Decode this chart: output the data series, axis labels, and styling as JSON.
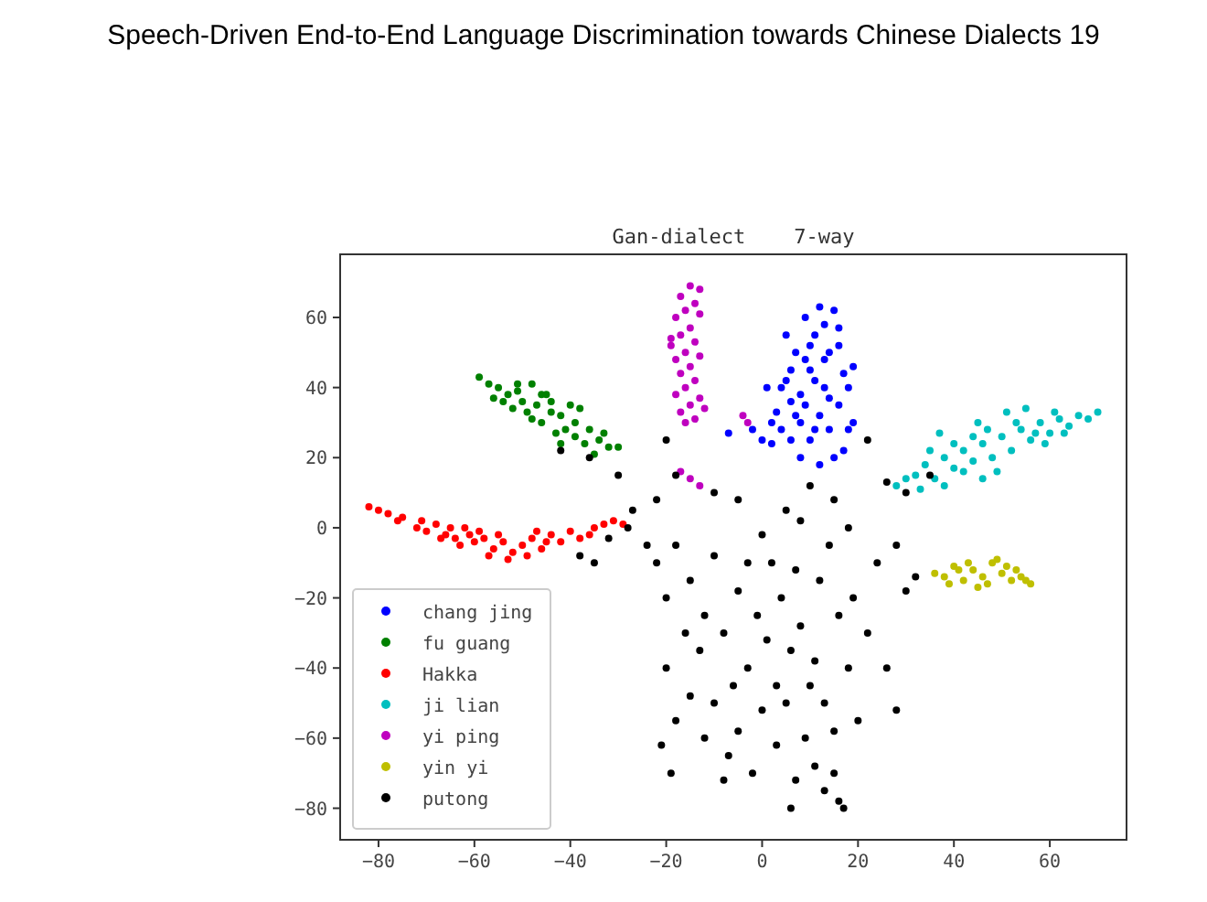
{
  "chart_data": {
    "type": "scatter",
    "title": "Gan-dialect    7-way",
    "annotations": [
      "Speech-Driven End-to-End Language Discrimination towards Chinese Dialects 19"
    ],
    "xlim": [
      -88,
      76
    ],
    "ylim": [
      -89,
      78
    ],
    "xticks": [
      -80,
      -60,
      -40,
      -20,
      0,
      20,
      40,
      60
    ],
    "yticks": [
      -80,
      -60,
      -40,
      -20,
      0,
      20,
      40,
      60
    ],
    "grid": false,
    "legend": "bottom left",
    "marker": "circle",
    "series": [
      {
        "name": "chang jing",
        "color": "#0000ff",
        "x": [
          12,
          15,
          9,
          11,
          16,
          14,
          19,
          18,
          10,
          6,
          4,
          8,
          13,
          16,
          12,
          8,
          4,
          6,
          10,
          14,
          18,
          2,
          15,
          12,
          6,
          3,
          1,
          0,
          17,
          13,
          10,
          7,
          5,
          13,
          16,
          11,
          9,
          14,
          7,
          17,
          -7,
          -2,
          8,
          11,
          19,
          2,
          5,
          9
        ],
        "values": [
          63,
          62,
          60,
          55,
          57,
          50,
          46,
          40,
          45,
          45,
          40,
          38,
          40,
          35,
          32,
          30,
          28,
          25,
          25,
          28,
          28,
          24,
          20,
          18,
          36,
          33,
          40,
          25,
          44,
          48,
          52,
          50,
          55,
          58,
          52,
          42,
          35,
          37,
          32,
          22,
          27,
          28,
          20,
          28,
          30,
          30,
          42,
          48
        ]
      },
      {
        "name": "fu guang",
        "color": "#008000",
        "x": [
          -59,
          -57,
          -55,
          -53,
          -56,
          -51,
          -48,
          -50,
          -52,
          -47,
          -45,
          -44,
          -46,
          -42,
          -40,
          -38,
          -41,
          -39,
          -36,
          -37,
          -34,
          -32,
          -35,
          -43,
          -48,
          -54,
          -49,
          -44,
          -39,
          -33,
          -30,
          -42,
          -46,
          -51
        ],
        "values": [
          43,
          41,
          40,
          38,
          37,
          39,
          41,
          36,
          34,
          35,
          38,
          33,
          30,
          32,
          35,
          34,
          28,
          26,
          28,
          24,
          25,
          23,
          21,
          27,
          31,
          36,
          33,
          36,
          30,
          27,
          23,
          24,
          38,
          41
        ]
      },
      {
        "name": "Hakka",
        "color": "#ff0000",
        "x": [
          -82,
          -80,
          -78,
          -76,
          -75,
          -72,
          -70,
          -68,
          -66,
          -64,
          -62,
          -60,
          -58,
          -56,
          -54,
          -52,
          -50,
          -48,
          -46,
          -44,
          -42,
          -40,
          -38,
          -35,
          -33,
          -31,
          -29,
          -36,
          -63,
          -57,
          -53,
          -61,
          -67,
          -71,
          -59,
          -45,
          -49,
          -55,
          -65,
          -47
        ],
        "values": [
          6,
          5,
          4,
          2,
          3,
          0,
          -1,
          1,
          -2,
          -3,
          0,
          -4,
          -3,
          -6,
          -4,
          -7,
          -5,
          -3,
          -6,
          -2,
          -4,
          -1,
          -3,
          0,
          1,
          2,
          1,
          -2,
          -5,
          -8,
          -9,
          -2,
          -3,
          2,
          -1,
          -4,
          -8,
          -2,
          0,
          -1
        ]
      },
      {
        "name": "ji lian",
        "color": "#00bfbf",
        "x": [
          28,
          30,
          32,
          34,
          36,
          38,
          40,
          42,
          44,
          46,
          48,
          50,
          52,
          54,
          56,
          58,
          60,
          62,
          64,
          66,
          68,
          70,
          47,
          51,
          55,
          44,
          40,
          42,
          38,
          35,
          37,
          49,
          53,
          57,
          61,
          45,
          33,
          59,
          63,
          46
        ],
        "values": [
          12,
          14,
          15,
          18,
          14,
          20,
          17,
          22,
          19,
          24,
          20,
          26,
          22,
          28,
          25,
          30,
          27,
          31,
          29,
          32,
          31,
          33,
          28,
          33,
          34,
          26,
          24,
          16,
          12,
          22,
          27,
          16,
          30,
          27,
          33,
          30,
          11,
          24,
          27,
          14
        ]
      },
      {
        "name": "yi ping",
        "color": "#bf00bf",
        "x": [
          -15,
          -13,
          -17,
          -14,
          -16,
          -18,
          -13,
          -15,
          -17,
          -19,
          -14,
          -16,
          -18,
          -13,
          -15,
          -17,
          -14,
          -16,
          -18,
          -13,
          -15,
          -17,
          -14,
          -16,
          -12,
          -19,
          -15,
          -13,
          -17,
          -4,
          -3
        ],
        "values": [
          69,
          68,
          66,
          64,
          62,
          60,
          61,
          57,
          55,
          54,
          53,
          50,
          48,
          49,
          46,
          44,
          42,
          40,
          38,
          37,
          35,
          33,
          31,
          30,
          34,
          52,
          14,
          12,
          16,
          32,
          30
        ]
      },
      {
        "name": "yin yi",
        "color": "#bfbf00",
        "x": [
          36,
          38,
          40,
          42,
          44,
          46,
          48,
          50,
          52,
          54,
          56,
          39,
          41,
          43,
          47,
          49,
          51,
          45,
          53,
          55
        ],
        "values": [
          -13,
          -14,
          -11,
          -15,
          -12,
          -14,
          -10,
          -13,
          -15,
          -14,
          -16,
          -16,
          -12,
          -10,
          -16,
          -9,
          -11,
          -17,
          -12,
          -15
        ]
      },
      {
        "name": "putong",
        "color": "#000000",
        "x": [
          -22,
          -20,
          -18,
          -15,
          -12,
          -10,
          -8,
          -5,
          -3,
          0,
          2,
          4,
          6,
          8,
          10,
          12,
          14,
          16,
          18,
          20,
          22,
          24,
          -20,
          -18,
          -15,
          -12,
          -10,
          -7,
          -5,
          -2,
          0,
          3,
          5,
          7,
          9,
          11,
          13,
          15,
          16,
          17,
          -16,
          -13,
          -6,
          -1,
          1,
          7,
          11,
          13,
          19,
          15,
          -21,
          -19,
          -8,
          28,
          26,
          -24,
          -22,
          -18,
          -20,
          -10,
          -5,
          5,
          8,
          10,
          15,
          18,
          -28,
          -32,
          -35,
          -38,
          -36,
          -42,
          -30,
          -27,
          30,
          32,
          28,
          22,
          26,
          30,
          35,
          3,
          -3,
          6
        ],
        "values": [
          -10,
          -20,
          -5,
          -15,
          -25,
          -8,
          -30,
          -18,
          -40,
          -2,
          -10,
          -20,
          -35,
          -28,
          -45,
          -15,
          -5,
          -25,
          -40,
          -55,
          -30,
          -10,
          -40,
          -55,
          -48,
          -60,
          -50,
          -65,
          -58,
          -70,
          -52,
          -62,
          -50,
          -72,
          -60,
          -68,
          -75,
          -70,
          -78,
          -80,
          -30,
          -35,
          -45,
          -25,
          -32,
          -12,
          -38,
          -50,
          -20,
          -58,
          -62,
          -70,
          -72,
          -52,
          -40,
          -5,
          8,
          15,
          25,
          10,
          8,
          5,
          2,
          12,
          8,
          0,
          0,
          -3,
          -10,
          -8,
          20,
          22,
          15,
          5,
          -18,
          -14,
          -5,
          25,
          13,
          10,
          15,
          -45,
          -10,
          -80
        ]
      }
    ]
  }
}
